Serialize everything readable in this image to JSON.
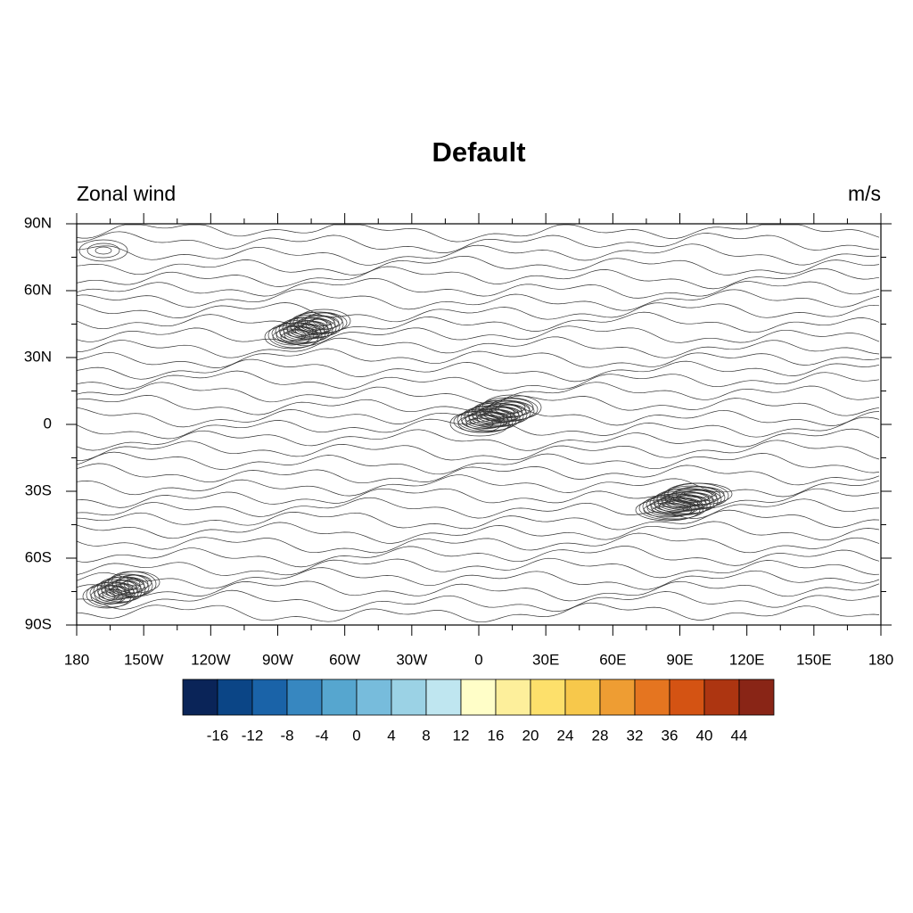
{
  "map": {
    "title": "Default",
    "left_label": "Zonal wind",
    "right_label": "m/s",
    "lon_labels": [
      "180",
      "150W",
      "120W",
      "90W",
      "60W",
      "30W",
      "0",
      "30E",
      "60E",
      "90E",
      "120E",
      "150E",
      "180"
    ],
    "lat_labels": [
      "90N",
      "60N",
      "30N",
      "0",
      "30S",
      "60S",
      "90S"
    ],
    "colorbar": {
      "colors": [
        "#0a2458",
        "#0b4586",
        "#1a63a8",
        "#3787c0",
        "#56a6cf",
        "#77bcdc",
        "#9bd2e5",
        "#bfe6f0",
        "#fffec8",
        "#fdef9b",
        "#fde06b",
        "#f7c84b",
        "#ee9d33",
        "#e57520",
        "#d45313",
        "#ad3511",
        "#892516"
      ],
      "levels": [
        -16,
        -12,
        -8,
        -4,
        0,
        4,
        8,
        12,
        16,
        20,
        24,
        28,
        32,
        36,
        40,
        44
      ]
    }
  }
}
